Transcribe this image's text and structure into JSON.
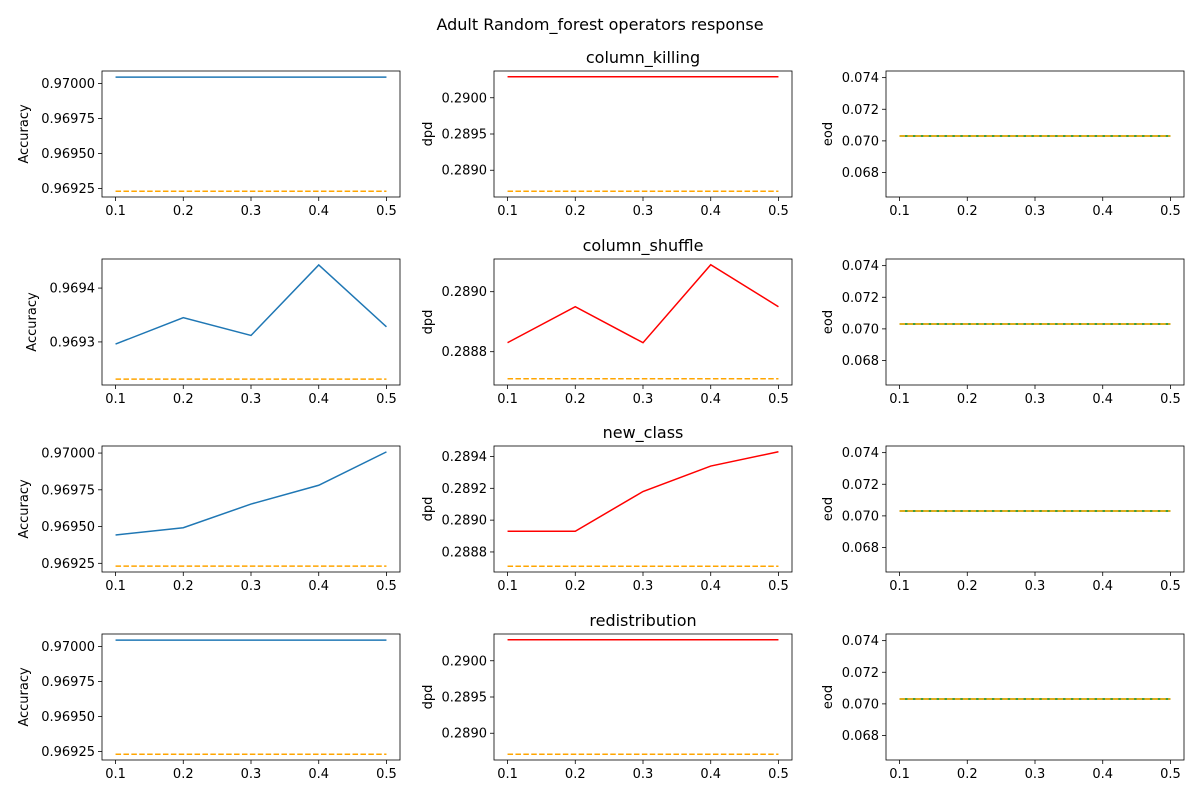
{
  "figure": {
    "suptitle": "Adult Random_forest operators response"
  },
  "colors": {
    "accuracy": "#1f77b4",
    "dpd": "#ff0000",
    "eod": "#008000",
    "baseline": "#ffa500"
  },
  "chart_data": [
    {
      "type": "line",
      "operator": "column_killing",
      "metric": "Accuracy",
      "ylabel": "Accuracy",
      "title": "",
      "x": [
        0.1,
        0.2,
        0.3,
        0.4,
        0.5
      ],
      "xticks": [
        "0.1",
        "0.2",
        "0.3",
        "0.4",
        "0.5"
      ],
      "series": [
        {
          "values": [
            0.970046,
            0.970046,
            0.970046,
            0.970046,
            0.970046
          ],
          "style": "solid",
          "color": "#1f77b4"
        },
        {
          "values": [
            0.969231,
            0.969231,
            0.969231,
            0.969231,
            0.969231
          ],
          "style": "dashed",
          "color": "#ffa500"
        }
      ],
      "ylim": [
        0.96919,
        0.97009
      ],
      "yticks": [
        0.96925,
        0.9695,
        0.96975,
        0.97
      ],
      "ytick_labels": [
        "0.96925",
        "0.96950",
        "0.96975",
        "0.97000"
      ]
    },
    {
      "type": "line",
      "operator": "column_killing",
      "metric": "dpd",
      "ylabel": "dpd",
      "title": "column_killing",
      "x": [
        0.1,
        0.2,
        0.3,
        0.4,
        0.5
      ],
      "xticks": [
        "0.1",
        "0.2",
        "0.3",
        "0.4",
        "0.5"
      ],
      "series": [
        {
          "values": [
            0.29029,
            0.29029,
            0.29029,
            0.29029,
            0.29029
          ],
          "style": "solid",
          "color": "#ff0000"
        },
        {
          "values": [
            0.28871,
            0.28871,
            0.28871,
            0.28871,
            0.28871
          ],
          "style": "dashed",
          "color": "#ffa500"
        }
      ],
      "ylim": [
        0.288631,
        0.290369
      ],
      "yticks": [
        0.289,
        0.2895,
        0.29
      ],
      "ytick_labels": [
        "0.2890",
        "0.2895",
        "0.2900"
      ]
    },
    {
      "type": "line",
      "operator": "column_killing",
      "metric": "eod",
      "ylabel": "eod",
      "title": "",
      "x": [
        0.1,
        0.2,
        0.3,
        0.4,
        0.5
      ],
      "xticks": [
        "0.1",
        "0.2",
        "0.3",
        "0.4",
        "0.5"
      ],
      "series": [
        {
          "values": [
            0.07031,
            0.07031,
            0.07031,
            0.07031,
            0.07031
          ],
          "style": "solid",
          "color": "#008000"
        },
        {
          "values": [
            0.07031,
            0.07031,
            0.07031,
            0.07031,
            0.07031
          ],
          "style": "dashed",
          "color": "#ffa500"
        }
      ],
      "ylim": [
        0.06645,
        0.07442
      ],
      "yticks": [
        0.068,
        0.07,
        0.072,
        0.074
      ],
      "ytick_labels": [
        "0.068",
        "0.070",
        "0.072",
        "0.074"
      ]
    },
    {
      "type": "line",
      "operator": "column_shuffle",
      "metric": "Accuracy",
      "ylabel": "Accuracy",
      "title": "",
      "x": [
        0.1,
        0.2,
        0.3,
        0.4,
        0.5
      ],
      "xticks": [
        "0.1",
        "0.2",
        "0.3",
        "0.4",
        "0.5"
      ],
      "series": [
        {
          "values": [
            0.969296,
            0.969345,
            0.969312,
            0.969443,
            0.969328
          ],
          "style": "solid",
          "color": "#1f77b4"
        },
        {
          "values": [
            0.969231,
            0.969231,
            0.969231,
            0.969231,
            0.969231
          ],
          "style": "dashed",
          "color": "#ffa500"
        }
      ],
      "ylim": [
        0.96922,
        0.969454
      ],
      "yticks": [
        0.9693,
        0.9694
      ],
      "ytick_labels": [
        "0.9693",
        "0.9694"
      ]
    },
    {
      "type": "line",
      "operator": "column_shuffle",
      "metric": "dpd",
      "ylabel": "dpd",
      "title": "column_shuffle",
      "x": [
        0.1,
        0.2,
        0.3,
        0.4,
        0.5
      ],
      "xticks": [
        "0.1",
        "0.2",
        "0.3",
        "0.4",
        "0.5"
      ],
      "series": [
        {
          "values": [
            0.28883,
            0.28895,
            0.28883,
            0.28909,
            0.28895
          ],
          "style": "solid",
          "color": "#ff0000"
        },
        {
          "values": [
            0.28871,
            0.28871,
            0.28871,
            0.28871,
            0.28871
          ],
          "style": "dashed",
          "color": "#ffa500"
        }
      ],
      "ylim": [
        0.288689,
        0.289109
      ],
      "yticks": [
        0.2888,
        0.289
      ],
      "ytick_labels": [
        "0.2888",
        "0.2890"
      ]
    },
    {
      "type": "line",
      "operator": "column_shuffle",
      "metric": "eod",
      "ylabel": "eod",
      "title": "",
      "x": [
        0.1,
        0.2,
        0.3,
        0.4,
        0.5
      ],
      "xticks": [
        "0.1",
        "0.2",
        "0.3",
        "0.4",
        "0.5"
      ],
      "series": [
        {
          "values": [
            0.07031,
            0.07031,
            0.07031,
            0.07031,
            0.07031
          ],
          "style": "solid",
          "color": "#008000"
        },
        {
          "values": [
            0.07031,
            0.07031,
            0.07031,
            0.07031,
            0.07031
          ],
          "style": "dashed",
          "color": "#ffa500"
        }
      ],
      "ylim": [
        0.06645,
        0.07442
      ],
      "yticks": [
        0.068,
        0.07,
        0.072,
        0.074
      ],
      "ytick_labels": [
        "0.068",
        "0.070",
        "0.072",
        "0.074"
      ]
    },
    {
      "type": "line",
      "operator": "new_class",
      "metric": "Accuracy",
      "ylabel": "Accuracy",
      "title": "",
      "x": [
        0.1,
        0.2,
        0.3,
        0.4,
        0.5
      ],
      "xticks": [
        "0.1",
        "0.2",
        "0.3",
        "0.4",
        "0.5"
      ],
      "series": [
        {
          "values": [
            0.969443,
            0.969492,
            0.969653,
            0.969781,
            0.970008
          ],
          "style": "solid",
          "color": "#1f77b4"
        },
        {
          "values": [
            0.969231,
            0.969231,
            0.969231,
            0.969231,
            0.969231
          ],
          "style": "dashed",
          "color": "#ffa500"
        }
      ],
      "ylim": [
        0.969191,
        0.970048
      ],
      "yticks": [
        0.96925,
        0.9695,
        0.96975,
        0.97
      ],
      "ytick_labels": [
        "0.96925",
        "0.96950",
        "0.96975",
        "0.97000"
      ]
    },
    {
      "type": "line",
      "operator": "new_class",
      "metric": "dpd",
      "ylabel": "dpd",
      "title": "new_class",
      "x": [
        0.1,
        0.2,
        0.3,
        0.4,
        0.5
      ],
      "xticks": [
        "0.1",
        "0.2",
        "0.3",
        "0.4",
        "0.5"
      ],
      "series": [
        {
          "values": [
            0.28893,
            0.28893,
            0.28918,
            0.28934,
            0.28943
          ],
          "style": "solid",
          "color": "#ff0000"
        },
        {
          "values": [
            0.28871,
            0.28871,
            0.28871,
            0.28871,
            0.28871
          ],
          "style": "dashed",
          "color": "#ffa500"
        }
      ],
      "ylim": [
        0.288674,
        0.289466
      ],
      "yticks": [
        0.2888,
        0.289,
        0.2892,
        0.2894
      ],
      "ytick_labels": [
        "0.2888",
        "0.2890",
        "0.2892",
        "0.2894"
      ]
    },
    {
      "type": "line",
      "operator": "new_class",
      "metric": "eod",
      "ylabel": "eod",
      "title": "",
      "x": [
        0.1,
        0.2,
        0.3,
        0.4,
        0.5
      ],
      "xticks": [
        "0.1",
        "0.2",
        "0.3",
        "0.4",
        "0.5"
      ],
      "series": [
        {
          "values": [
            0.07031,
            0.07031,
            0.07031,
            0.07031,
            0.07031
          ],
          "style": "solid",
          "color": "#008000"
        },
        {
          "values": [
            0.07031,
            0.07031,
            0.07031,
            0.07031,
            0.07031
          ],
          "style": "dashed",
          "color": "#ffa500"
        }
      ],
      "ylim": [
        0.06645,
        0.07442
      ],
      "yticks": [
        0.068,
        0.07,
        0.072,
        0.074
      ],
      "ytick_labels": [
        "0.068",
        "0.070",
        "0.072",
        "0.074"
      ]
    },
    {
      "type": "line",
      "operator": "redistribution",
      "metric": "Accuracy",
      "ylabel": "Accuracy",
      "title": "",
      "x": [
        0.1,
        0.2,
        0.3,
        0.4,
        0.5
      ],
      "xticks": [
        "0.1",
        "0.2",
        "0.3",
        "0.4",
        "0.5"
      ],
      "series": [
        {
          "values": [
            0.970046,
            0.970046,
            0.970046,
            0.970046,
            0.970046
          ],
          "style": "solid",
          "color": "#1f77b4"
        },
        {
          "values": [
            0.969231,
            0.969231,
            0.969231,
            0.969231,
            0.969231
          ],
          "style": "dashed",
          "color": "#ffa500"
        }
      ],
      "ylim": [
        0.96919,
        0.97009
      ],
      "yticks": [
        0.96925,
        0.9695,
        0.96975,
        0.97
      ],
      "ytick_labels": [
        "0.96925",
        "0.96950",
        "0.96975",
        "0.97000"
      ]
    },
    {
      "type": "line",
      "operator": "redistribution",
      "metric": "dpd",
      "ylabel": "dpd",
      "title": "redistribution",
      "x": [
        0.1,
        0.2,
        0.3,
        0.4,
        0.5
      ],
      "xticks": [
        "0.1",
        "0.2",
        "0.3",
        "0.4",
        "0.5"
      ],
      "series": [
        {
          "values": [
            0.29029,
            0.29029,
            0.29029,
            0.29029,
            0.29029
          ],
          "style": "solid",
          "color": "#ff0000"
        },
        {
          "values": [
            0.28871,
            0.28871,
            0.28871,
            0.28871,
            0.28871
          ],
          "style": "dashed",
          "color": "#ffa500"
        }
      ],
      "ylim": [
        0.288631,
        0.290369
      ],
      "yticks": [
        0.289,
        0.2895,
        0.29
      ],
      "ytick_labels": [
        "0.2890",
        "0.2895",
        "0.2900"
      ]
    },
    {
      "type": "line",
      "operator": "redistribution",
      "metric": "eod",
      "ylabel": "eod",
      "title": "",
      "x": [
        0.1,
        0.2,
        0.3,
        0.4,
        0.5
      ],
      "xticks": [
        "0.1",
        "0.2",
        "0.3",
        "0.4",
        "0.5"
      ],
      "series": [
        {
          "values": [
            0.07031,
            0.07031,
            0.07031,
            0.07031,
            0.07031
          ],
          "style": "solid",
          "color": "#008000"
        },
        {
          "values": [
            0.07031,
            0.07031,
            0.07031,
            0.07031,
            0.07031
          ],
          "style": "dashed",
          "color": "#ffa500"
        }
      ],
      "ylim": [
        0.06645,
        0.07442
      ],
      "yticks": [
        0.068,
        0.07,
        0.072,
        0.074
      ],
      "ytick_labels": [
        "0.068",
        "0.070",
        "0.072",
        "0.074"
      ]
    }
  ]
}
